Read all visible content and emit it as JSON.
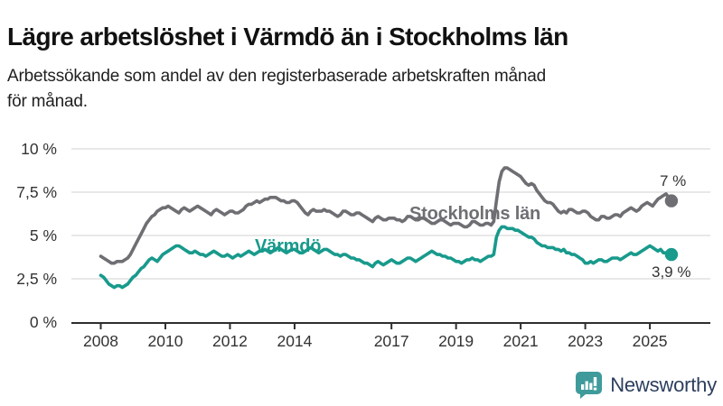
{
  "header": {
    "title": "Lägre arbetslöshet i Värmdö än i Stockholms län",
    "subtitle_lines": [
      "Arbetssökande som andel av den registerbaserade arbetskraften månad",
      "för månad."
    ]
  },
  "chart_data": {
    "type": "line",
    "title": "Lägre arbetslöshet i Värmdö än i Stockholms län",
    "xlabel": "",
    "ylabel": "",
    "ylim": [
      0,
      10
    ],
    "grid": true,
    "legend_position": "inline-labels-on-lines",
    "x_start_year": 2008,
    "x_unit": "month",
    "yticks": [
      {
        "value": 0,
        "label": "0 %"
      },
      {
        "value": 2.5,
        "label": "2,5 %"
      },
      {
        "value": 5,
        "label": "5 %"
      },
      {
        "value": 7.5,
        "label": "7,5 %"
      },
      {
        "value": 10,
        "label": "10 %"
      }
    ],
    "xticks": [
      {
        "value": 2008,
        "label": "2008"
      },
      {
        "value": 2010,
        "label": "2010"
      },
      {
        "value": 2012,
        "label": "2012"
      },
      {
        "value": 2014,
        "label": "2014"
      },
      {
        "value": 2017,
        "label": "2017"
      },
      {
        "value": 2019,
        "label": "2019"
      },
      {
        "value": 2021,
        "label": "2021"
      },
      {
        "value": 2023,
        "label": "2023"
      },
      {
        "value": 2025,
        "label": "2025"
      }
    ],
    "series": [
      {
        "name": "Stockholms län",
        "color": "#6E6E73",
        "end_label": "7 %",
        "end_value": 7.0,
        "values": [
          3.8,
          3.7,
          3.6,
          3.5,
          3.4,
          3.4,
          3.5,
          3.5,
          3.5,
          3.6,
          3.7,
          3.9,
          4.2,
          4.5,
          4.8,
          5.1,
          5.4,
          5.7,
          5.9,
          6.1,
          6.2,
          6.4,
          6.5,
          6.6,
          6.6,
          6.7,
          6.6,
          6.5,
          6.4,
          6.3,
          6.5,
          6.6,
          6.5,
          6.4,
          6.5,
          6.6,
          6.7,
          6.6,
          6.5,
          6.4,
          6.3,
          6.2,
          6.4,
          6.5,
          6.4,
          6.3,
          6.2,
          6.3,
          6.4,
          6.4,
          6.3,
          6.3,
          6.4,
          6.5,
          6.7,
          6.8,
          6.8,
          6.9,
          7.0,
          6.9,
          7.0,
          7.1,
          7.1,
          7.2,
          7.2,
          7.2,
          7.1,
          7.0,
          7.0,
          6.9,
          6.9,
          7.0,
          7.0,
          6.9,
          6.7,
          6.5,
          6.3,
          6.2,
          6.4,
          6.5,
          6.4,
          6.4,
          6.4,
          6.5,
          6.4,
          6.4,
          6.3,
          6.2,
          6.1,
          6.2,
          6.4,
          6.4,
          6.3,
          6.2,
          6.2,
          6.3,
          6.3,
          6.2,
          6.1,
          6.0,
          5.9,
          5.8,
          6.0,
          6.1,
          6.0,
          5.9,
          5.9,
          6.0,
          6.0,
          6.0,
          5.9,
          5.9,
          5.8,
          5.9,
          6.1,
          6.1,
          6.0,
          5.9,
          5.9,
          6.0,
          6.0,
          5.9,
          5.8,
          5.7,
          5.7,
          5.8,
          5.9,
          5.9,
          5.8,
          5.7,
          5.6,
          5.7,
          5.7,
          5.7,
          5.6,
          5.5,
          5.5,
          5.6,
          5.8,
          5.8,
          5.7,
          5.6,
          5.6,
          5.7,
          5.7,
          5.6,
          5.8,
          7.0,
          8.1,
          8.7,
          8.9,
          8.9,
          8.8,
          8.7,
          8.6,
          8.5,
          8.4,
          8.2,
          8.0,
          7.9,
          8.0,
          7.9,
          7.6,
          7.4,
          7.2,
          7.0,
          6.9,
          6.9,
          6.8,
          6.6,
          6.4,
          6.3,
          6.4,
          6.3,
          6.5,
          6.5,
          6.4,
          6.3,
          6.3,
          6.4,
          6.4,
          6.3,
          6.1,
          6.0,
          5.9,
          5.9,
          6.1,
          6.1,
          6.0,
          6.0,
          6.1,
          6.2,
          6.2,
          6.1,
          6.3,
          6.4,
          6.5,
          6.6,
          6.5,
          6.4,
          6.5,
          6.7,
          6.8,
          6.9,
          6.8,
          6.7,
          6.9,
          7.1,
          7.2,
          7.3,
          7.4,
          7.2,
          7.0
        ]
      },
      {
        "name": "Värmdö",
        "color": "#189A8C",
        "end_label": "3,9 %",
        "end_value": 3.9,
        "values": [
          2.7,
          2.6,
          2.4,
          2.2,
          2.1,
          2.0,
          2.1,
          2.1,
          2.0,
          2.1,
          2.2,
          2.4,
          2.6,
          2.7,
          2.9,
          3.1,
          3.2,
          3.4,
          3.6,
          3.7,
          3.6,
          3.5,
          3.7,
          3.9,
          4.0,
          4.1,
          4.2,
          4.3,
          4.4,
          4.4,
          4.3,
          4.2,
          4.1,
          4.0,
          4.0,
          4.1,
          4.0,
          3.9,
          3.9,
          3.8,
          3.9,
          4.0,
          4.1,
          4.0,
          3.9,
          3.8,
          3.8,
          3.9,
          3.8,
          3.7,
          3.8,
          3.9,
          3.8,
          3.9,
          4.0,
          4.1,
          4.0,
          3.9,
          4.0,
          4.1,
          4.1,
          4.2,
          4.1,
          4.0,
          4.1,
          4.2,
          4.3,
          4.2,
          4.1,
          4.0,
          4.1,
          4.2,
          4.2,
          4.1,
          4.0,
          4.0,
          4.1,
          4.2,
          4.3,
          4.2,
          4.1,
          4.0,
          4.1,
          4.2,
          4.2,
          4.1,
          4.0,
          3.9,
          3.9,
          3.8,
          3.9,
          3.9,
          3.8,
          3.7,
          3.7,
          3.6,
          3.6,
          3.5,
          3.4,
          3.4,
          3.3,
          3.2,
          3.4,
          3.5,
          3.4,
          3.3,
          3.4,
          3.5,
          3.6,
          3.5,
          3.4,
          3.4,
          3.5,
          3.6,
          3.7,
          3.7,
          3.6,
          3.5,
          3.6,
          3.7,
          3.8,
          3.9,
          4.0,
          4.1,
          4.0,
          3.9,
          3.9,
          3.8,
          3.8,
          3.7,
          3.7,
          3.6,
          3.5,
          3.5,
          3.4,
          3.5,
          3.6,
          3.6,
          3.7,
          3.6,
          3.6,
          3.5,
          3.6,
          3.7,
          3.8,
          3.8,
          3.9,
          4.9,
          5.3,
          5.5,
          5.5,
          5.4,
          5.4,
          5.4,
          5.3,
          5.3,
          5.2,
          5.1,
          5.0,
          4.9,
          4.9,
          4.8,
          4.6,
          4.5,
          4.4,
          4.4,
          4.3,
          4.3,
          4.3,
          4.2,
          4.2,
          4.1,
          4.2,
          4.0,
          4.0,
          3.9,
          3.9,
          3.8,
          3.7,
          3.6,
          3.4,
          3.4,
          3.5,
          3.4,
          3.5,
          3.6,
          3.6,
          3.5,
          3.5,
          3.6,
          3.7,
          3.7,
          3.7,
          3.6,
          3.7,
          3.8,
          3.9,
          4.0,
          3.9,
          3.9,
          4.0,
          4.1,
          4.2,
          4.3,
          4.4,
          4.3,
          4.2,
          4.1,
          4.2,
          4.0,
          4.0,
          3.9,
          3.9
        ]
      }
    ]
  },
  "annotations": {
    "stockholm_label": "Stockholms län",
    "varmdo_label": "Värmdö",
    "stockholm_end_label": "7 %",
    "varmdo_end_label": "3,9 %"
  },
  "footer": {
    "brand": "Newsworthy",
    "brand_text_color": "#2C3E5E",
    "icon_color": "#3F9B9B",
    "icon": "newsworthy-chart-bubble-icon"
  },
  "colors": {
    "stockholm_line": "#6E6E73",
    "varmdo_line": "#189A8C",
    "gridline": "#D9D9D9",
    "axis": "#2E2E2E",
    "tick_text": "#333333"
  }
}
